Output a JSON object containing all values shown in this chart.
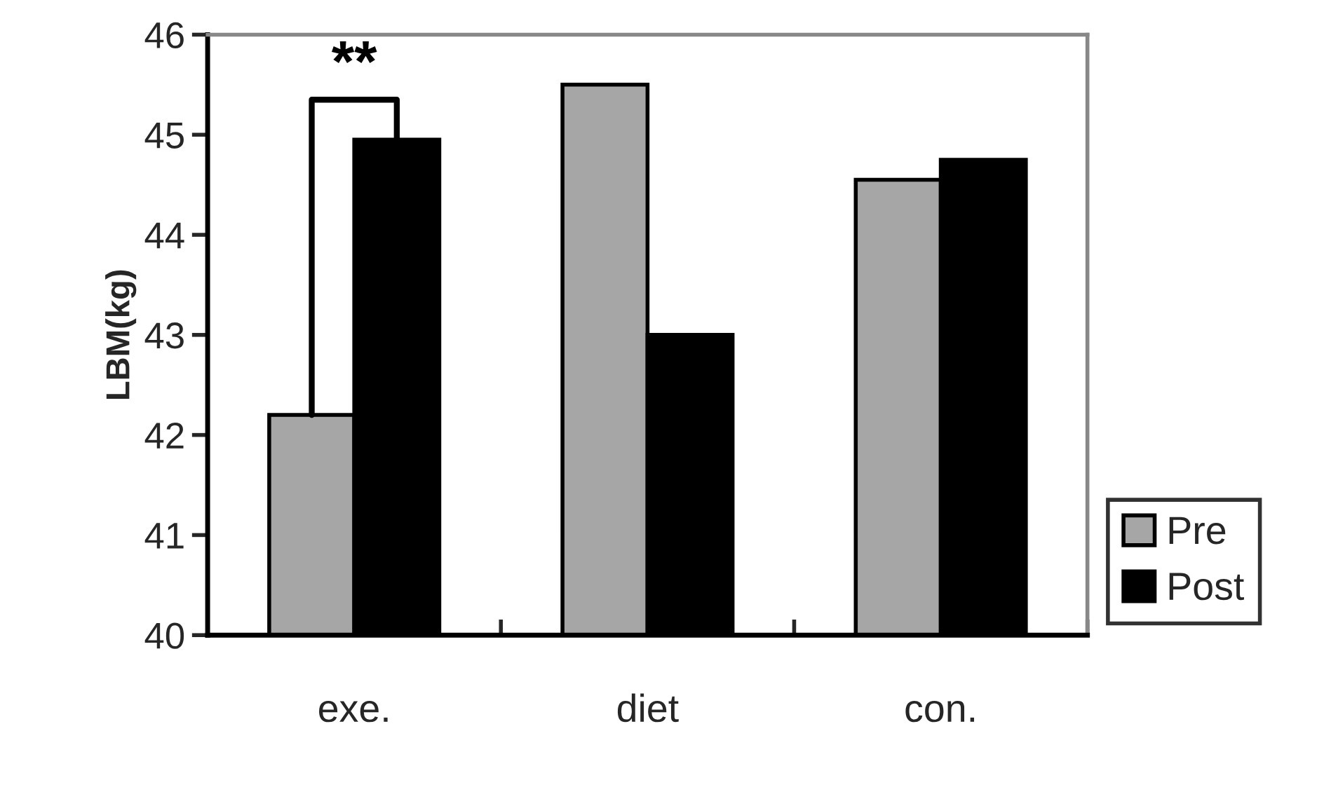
{
  "chart_data": {
    "type": "bar",
    "ylabel": "LBM(kg)",
    "categories": [
      "exe.",
      "diet",
      "con."
    ],
    "series": [
      {
        "name": "Pre",
        "color": "#a6a6a6",
        "values": [
          42.2,
          45.5,
          44.55
        ]
      },
      {
        "name": "Post",
        "color": "#000000",
        "values": [
          44.95,
          43.0,
          44.75
        ]
      }
    ],
    "ylim": [
      40,
      46
    ],
    "yticks": [
      40,
      41,
      42,
      43,
      44,
      45,
      46
    ],
    "annotations": [
      "**"
    ],
    "grid": false,
    "legend": "bottom right"
  }
}
